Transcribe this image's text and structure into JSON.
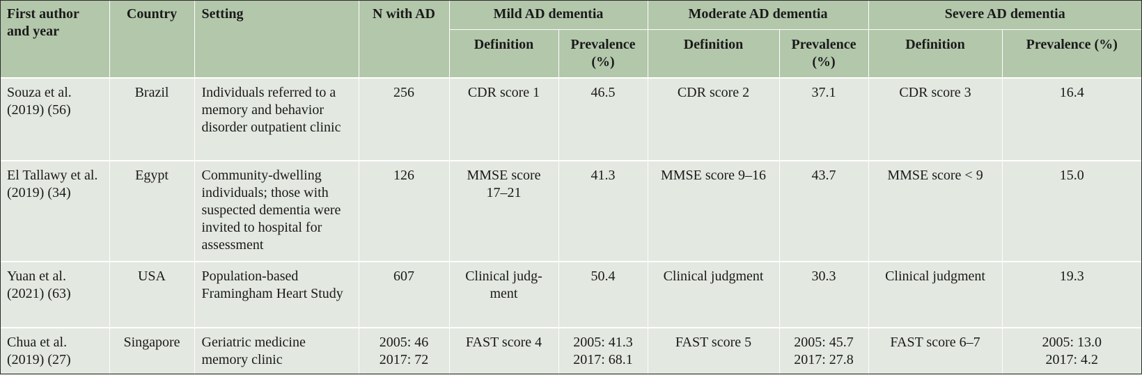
{
  "headers": {
    "author": "First author and year",
    "country": "Country",
    "setting": "Setting",
    "n": "N with AD",
    "mild": "Mild AD dementia",
    "moderate": "Moderate AD dementia",
    "severe": "Severe AD dementia",
    "definition": "Definition",
    "prevalence": "Prevalence (%)"
  },
  "rows": [
    {
      "author": "Souza et al. (2019) (56)",
      "country": "Brazil",
      "setting": "Individuals referred to a memory and behavior disorder outpatient clinic",
      "n": "256",
      "mild_def": "CDR score 1",
      "mild_prev": "46.5",
      "mod_def": "CDR score 2",
      "mod_prev": "37.1",
      "sev_def": "CDR score 3",
      "sev_prev": "16.4"
    },
    {
      "author": "El Tallawy et al. (2019) (34)",
      "country": "Egypt",
      "setting": "Community-dwelling individuals; those with suspected dementia were invited to hospital for assessment",
      "n": "126",
      "mild_def": "MMSE score 17–21",
      "mild_prev": "41.3",
      "mod_def": "MMSE score 9–16",
      "mod_prev": "43.7",
      "sev_def": "MMSE score < 9",
      "sev_prev": "15.0"
    },
    {
      "author": "Yuan et al. (2021) (63)",
      "country": "USA",
      "setting": "Population-based Framingham Heart Study",
      "n": "607",
      "mild_def": "Clinical judg-ment",
      "mild_prev": "50.4",
      "mod_def": "Clinical judgment",
      "mod_prev": "30.3",
      "sev_def": "Clinical judgment",
      "sev_prev": "19.3"
    },
    {
      "author": "Chua et al. (2019) (27)",
      "country": "Singapore",
      "setting": "Geriatric medicine memory clinic",
      "n": [
        "2005: 46",
        "2017: 72"
      ],
      "mild_def": "FAST score 4",
      "mild_prev": [
        "2005: 41.3",
        "2017: 68.1"
      ],
      "mod_def": "FAST score 5",
      "mod_prev": [
        "2005: 45.7",
        "2017: 27.8"
      ],
      "sev_def": "FAST score 6–7",
      "sev_prev": [
        "2005: 13.0",
        "2017: 4.2"
      ]
    }
  ]
}
